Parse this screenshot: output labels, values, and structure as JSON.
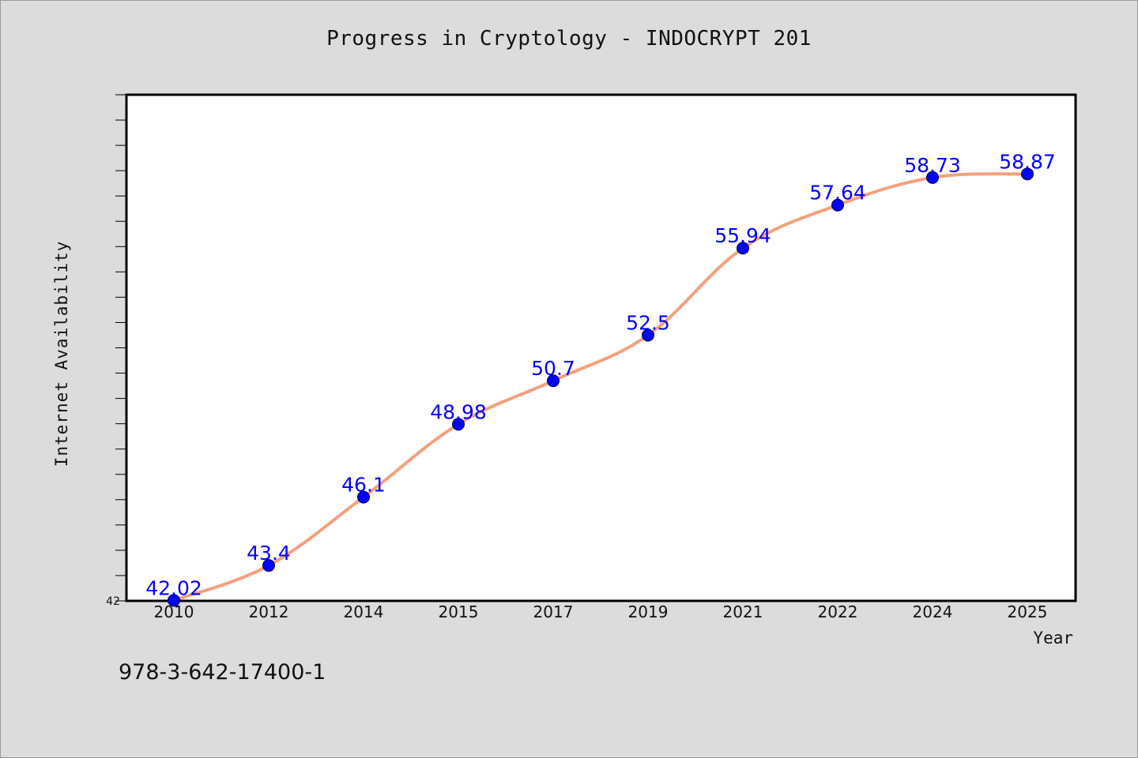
{
  "chart_data": {
    "type": "line",
    "title": "Progress in Cryptology - INDOCRYPT 201",
    "xlabel": "Year",
    "ylabel": "Internet Availability",
    "categories": [
      "2010",
      "2012",
      "2014",
      "2015",
      "2017",
      "2019",
      "2021",
      "2022",
      "2024",
      "2025"
    ],
    "series": [
      {
        "values": [
          42.02,
          43.4,
          46.1,
          48.98,
          50.7,
          52.5,
          55.94,
          57.64,
          58.73,
          58.87
        ],
        "data_labels": [
          "42.02",
          "43.4",
          "46.1",
          "48.98",
          "50.7",
          "52.5",
          "55.94",
          "57.64",
          "58.73",
          "58.87"
        ],
        "line_color": "#f4a07e",
        "marker_color": "#0000ff"
      }
    ],
    "ylim": [
      42,
      62
    ],
    "y_tick_labels": [
      "42"
    ],
    "grid": false,
    "legend": "none"
  },
  "footer": {
    "text": "978-3-642-17400-1"
  }
}
